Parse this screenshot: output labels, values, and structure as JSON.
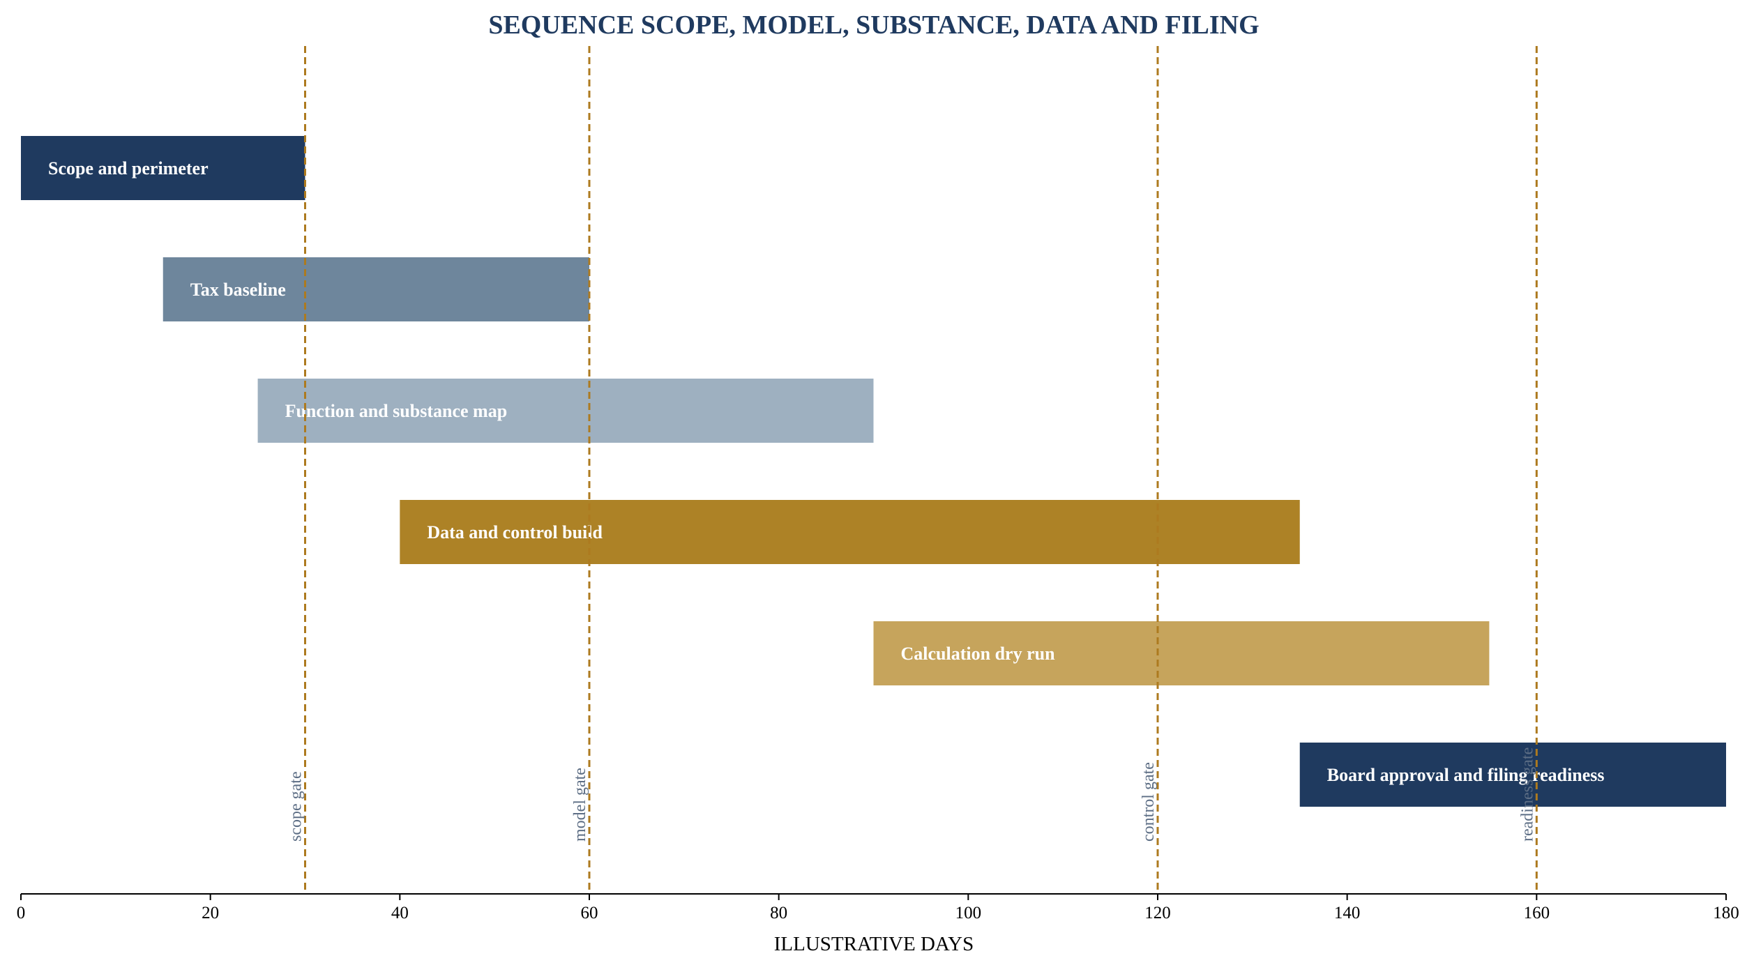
{
  "chart_data": {
    "type": "bar",
    "orientation": "horizontal",
    "title": "SEQUENCE SCOPE, MODEL, SUBSTANCE, DATA AND FILING",
    "xlabel": "ILLUSTRATIVE DAYS",
    "ylabel": "",
    "xlim": [
      0,
      180
    ],
    "xticks": [
      0,
      20,
      40,
      60,
      80,
      100,
      120,
      140,
      160,
      180
    ],
    "grid": false,
    "tasks": [
      {
        "label": "Scope and perimeter",
        "start": 0,
        "end": 30,
        "color": "#1f3a5f"
      },
      {
        "label": "Tax baseline",
        "start": 15,
        "end": 60,
        "color": "#6e869c"
      },
      {
        "label": "Function and substance map",
        "start": 25,
        "end": 90,
        "color": "#9eb0c0"
      },
      {
        "label": "Data and control build",
        "start": 40,
        "end": 135,
        "color": "#ad8226"
      },
      {
        "label": "Calculation dry run",
        "start": 90,
        "end": 155,
        "color": "#c6a45c"
      },
      {
        "label": "Board approval and filing readiness",
        "start": 135,
        "end": 180,
        "color": "#1f3a5f"
      }
    ],
    "gates": [
      {
        "label": "scope gate",
        "x": 30
      },
      {
        "label": "model gate",
        "x": 60
      },
      {
        "label": "control gate",
        "x": 120
      },
      {
        "label": "readiness gate",
        "x": 160
      }
    ],
    "gate_color": "#ad7a1f"
  }
}
